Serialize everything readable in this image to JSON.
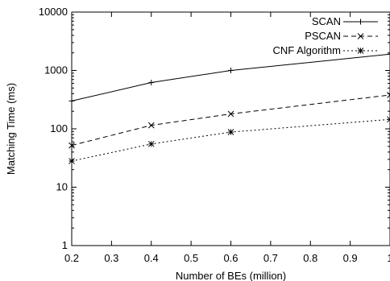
{
  "chart_data": {
    "type": "line",
    "title": "",
    "xlabel": "Number of BEs (million)",
    "ylabel": "Matching Time (ms)",
    "xlim": [
      0.2,
      1
    ],
    "ylim": [
      1,
      10000
    ],
    "yscale": "log",
    "grid": false,
    "legend_position": "top-right",
    "x_ticks": [
      0.2,
      0.3,
      0.4,
      0.5,
      0.6,
      0.7,
      0.8,
      0.9,
      1
    ],
    "x_tick_labels": [
      "0.2",
      "0.3",
      "0.4",
      "0.5",
      "0.6",
      "0.7",
      "0.8",
      "0.9",
      "1"
    ],
    "y_ticks": [
      1,
      10,
      100,
      1000,
      10000
    ],
    "y_tick_labels": [
      "1",
      "10",
      "100",
      "1000",
      "10000"
    ],
    "series": [
      {
        "name": "SCAN",
        "x": [
          0.2,
          0.4,
          0.6,
          1
        ],
        "y": [
          300,
          620,
          1000,
          1900
        ],
        "line_style": "solid",
        "marker": "+"
      },
      {
        "name": "PSCAN",
        "x": [
          0.2,
          0.4,
          0.6,
          1
        ],
        "y": [
          52,
          115,
          180,
          380
        ],
        "line_style": "dashed",
        "marker": "x"
      },
      {
        "name": "CNF Algorithm",
        "x": [
          0.2,
          0.4,
          0.6,
          1
        ],
        "y": [
          28,
          55,
          88,
          145
        ],
        "line_style": "dotted",
        "marker": "*"
      }
    ]
  }
}
